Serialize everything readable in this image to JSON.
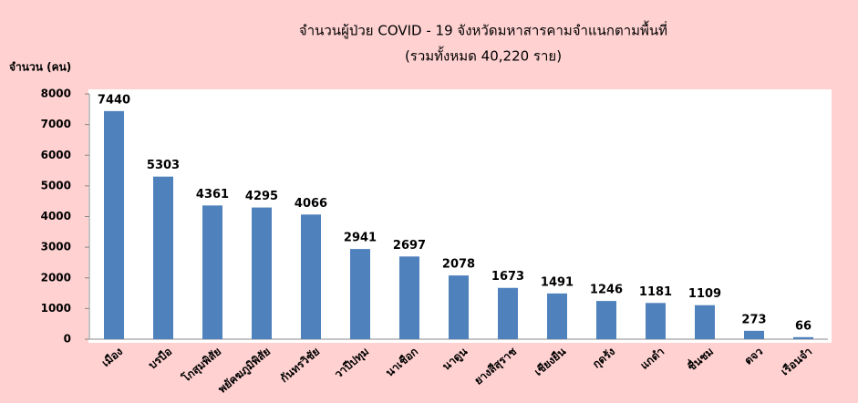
{
  "chart_data": {
    "type": "bar",
    "title": "จำนวนผู้ป่วย COVID - 19  จังหวัดมหาสารคามจำแนกตามพื้นที่",
    "subtitle": "(รวมทั้งหมด 40,220 ราย)",
    "y_label": "จำนวน (คน)",
    "categories": [
      "เมือง",
      "บรบือ",
      "โกสุมพิสัย",
      "พยัคฆภูมิพิสัย",
      "กันทรวิชัย",
      "วาปีปทุม",
      "นาเชือก",
      "นาดูน",
      "ยางสีสุราช",
      "เชียงยืน",
      "กุดรัง",
      "แกดำ",
      "ชื่นชม",
      "ตจว",
      "เรือนจำ"
    ],
    "values": [
      7440,
      5303,
      4361,
      4295,
      4066,
      2941,
      2697,
      2078,
      1673,
      1491,
      1246,
      1181,
      1109,
      273,
      66
    ],
    "color": "#4f81bd",
    "ylim": [
      0,
      8000
    ],
    "yticks": [
      0,
      1000,
      2000,
      3000,
      4000,
      5000,
      6000,
      7000,
      8000
    ],
    "grid": false
  }
}
